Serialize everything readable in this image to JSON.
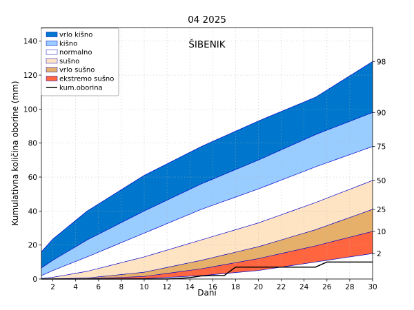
{
  "chart_data": {
    "type": "area",
    "title": "04 2025",
    "station": "ŠIBENIK",
    "xlabel": "Dani",
    "ylabel": "Kumulativna količina oborine (mm)",
    "xlim": [
      1,
      30
    ],
    "ylim": [
      0,
      148
    ],
    "x_ticks": [
      2,
      4,
      6,
      8,
      10,
      12,
      14,
      16,
      18,
      20,
      22,
      24,
      26,
      28,
      30
    ],
    "y_ticks": [
      0,
      20,
      40,
      60,
      80,
      100,
      120,
      140
    ],
    "grid": true,
    "legend_position": "top-left",
    "colors": {
      "vrlo_kisno": "#0077cc",
      "kisno": "#99ccff",
      "normalno": "#ffffff",
      "susno": "#ffe4c4",
      "vrlo_susno": "#e6b06a",
      "ekstremo_susno": "#ff6640",
      "percentile_line": "#0000cc",
      "kum_oborina": "#000000"
    },
    "percentiles": [
      {
        "label": "98",
        "values": {
          "1": 16,
          "2": 23.5,
          "5": 40,
          "10": 61,
          "15": 78,
          "20": 93,
          "25": 107,
          "30": 128
        }
      },
      {
        "label": "90",
        "values": {
          "1": 6.5,
          "2": 11,
          "5": 23,
          "10": 40,
          "15": 56,
          "20": 70,
          "25": 85,
          "30": 98
        }
      },
      {
        "label": "75",
        "values": {
          "1": 2,
          "2": 5,
          "5": 13,
          "10": 27,
          "15": 41,
          "20": 53,
          "25": 66,
          "30": 78
        }
      },
      {
        "label": "50",
        "values": {
          "1": 0.3,
          "2": 1,
          "5": 4.5,
          "10": 13,
          "15": 23,
          "20": 33,
          "25": 45,
          "30": 58
        }
      },
      {
        "label": "25",
        "values": {
          "1": 0,
          "2": 0.1,
          "5": 0.6,
          "10": 4,
          "15": 11,
          "20": 19,
          "25": 29,
          "30": 41
        }
      },
      {
        "label": "10",
        "values": {
          "1": 0,
          "2": 0,
          "5": 0.1,
          "10": 1.5,
          "15": 6,
          "20": 12,
          "25": 19.5,
          "30": 28
        }
      },
      {
        "label": "2",
        "values": {
          "1": 0,
          "2": 0,
          "5": 0,
          "10": 0.2,
          "15": 2,
          "20": 5,
          "25": 10,
          "30": 15
        }
      }
    ],
    "right_labels": [
      "98",
      "90",
      "75",
      "50",
      "25",
      "10",
      "2"
    ],
    "series": [
      {
        "name": "kum.oborina",
        "x": [
          1,
          2,
          3,
          4,
          5,
          6,
          7,
          8,
          9,
          10,
          11,
          12,
          13,
          14,
          15,
          16,
          17,
          18,
          19,
          20,
          21,
          22,
          23,
          24,
          25,
          26,
          27,
          28,
          29,
          30
        ],
        "values": [
          0,
          0,
          0,
          0,
          0,
          0,
          0,
          0,
          0,
          0,
          0,
          0,
          0.3,
          0.8,
          1.8,
          2,
          2,
          7,
          7,
          7,
          7,
          7,
          7,
          7,
          7,
          10,
          10,
          10,
          10,
          10
        ]
      }
    ],
    "legend": [
      {
        "label": "vrlo kišno",
        "kind": "patch",
        "color": "#0077cc"
      },
      {
        "label": "kišno",
        "kind": "patch",
        "color": "#99ccff"
      },
      {
        "label": "normalno",
        "kind": "patch",
        "color": "#ffffff"
      },
      {
        "label": "sušno",
        "kind": "patch",
        "color": "#ffe4c4"
      },
      {
        "label": "vrlo sušno",
        "kind": "patch",
        "color": "#e6b06a"
      },
      {
        "label": "ekstremo sušno",
        "kind": "patch",
        "color": "#ff6640"
      },
      {
        "label": "kum.oborina",
        "kind": "line",
        "color": "#000000"
      }
    ]
  }
}
